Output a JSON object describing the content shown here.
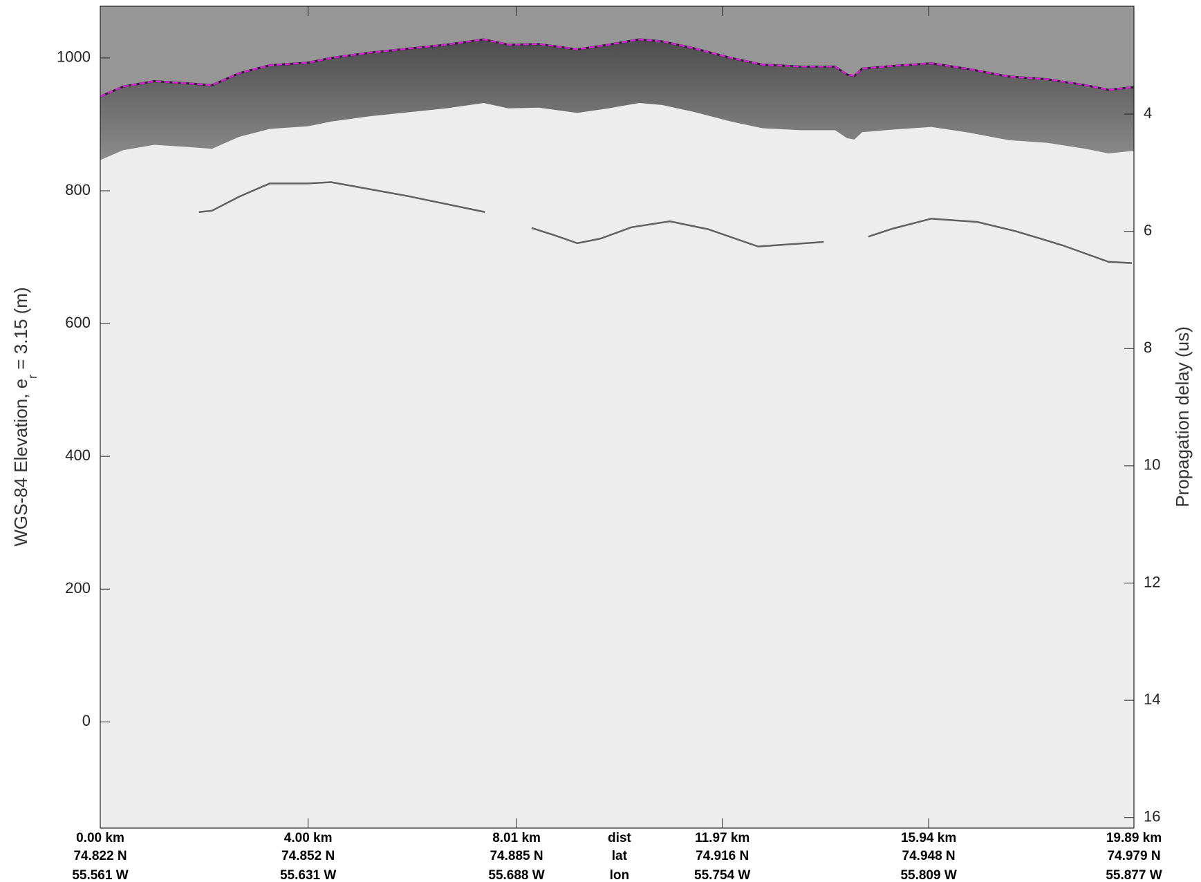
{
  "chart_data": {
    "type": "radargram",
    "xlim": [
      0,
      19.89
    ],
    "ylim": [
      -160,
      1078
    ],
    "yticks": [
      0,
      200,
      400,
      600,
      800,
      1000
    ],
    "y2lim": [
      2.16,
      16.18
    ],
    "y2ticks": [
      4,
      6,
      8,
      10,
      12,
      14,
      16
    ],
    "y2reverse": true,
    "ylabel": "WGS-84 Elevation, e",
    "ylabel_sub": "r",
    "ylabel_rest": " = 3.15 (m)",
    "y2label": "Propagation delay (us)",
    "xticks": [
      {
        "value": 0,
        "label": "0.00 km"
      },
      {
        "value": 4,
        "label": "4.00 km"
      },
      {
        "value": 8.01,
        "label": "8.01 km"
      },
      {
        "value": 11.97,
        "label": "11.97 km"
      },
      {
        "value": 15.94,
        "label": "15.94 km"
      },
      {
        "value": 19.89,
        "label": "19.89 km"
      }
    ],
    "lat_labels": [
      "74.822 N",
      "74.852 N",
      "74.885 N",
      "74.916 N",
      "74.948 N",
      "74.979 N"
    ],
    "lon_labels": [
      "55.561 W",
      "55.631 W",
      "55.688 W",
      "55.754 W",
      "55.809 W",
      "55.877 W"
    ],
    "row_labels": [
      "dist",
      "lat",
      "lon"
    ],
    "series": [
      {
        "color": "#e020e0",
        "style": "dashed",
        "x": [
          0,
          0.44,
          1.04,
          1.63,
          2.15,
          2.67,
          3.26,
          4.0,
          4.44,
          5.18,
          5.92,
          6.66,
          7.38,
          7.85,
          8.44,
          9.18,
          9.78,
          10.37,
          10.81,
          11.4,
          12.14,
          12.74,
          13.48,
          14.14,
          14.37,
          14.51,
          14.66,
          15.25,
          15.99,
          16.74,
          17.48,
          18.22,
          18.96,
          19.4,
          19.89
        ],
        "values": [
          942,
          957,
          965,
          962,
          959,
          977,
          989,
          993,
          1000,
          1008,
          1014,
          1020,
          1028,
          1020,
          1021,
          1013,
          1020,
          1028,
          1025,
          1015,
          1000,
          990,
          987,
          987,
          975,
          973,
          984,
          988,
          992,
          983,
          972,
          968,
          959,
          952,
          956
        ]
      },
      {
        "color": "#606060",
        "style": "solid",
        "x": [
          1.9,
          2.15,
          2.67,
          3.26,
          4.0,
          4.44,
          5.92,
          7.4,
          7.6,
          8.3,
          8.74,
          9.18,
          9.63,
          10.22,
          10.96,
          11.7,
          12.66,
          13.92,
          14.3,
          14.78,
          15.25,
          15.99,
          16.88,
          17.62,
          18.51,
          19.4,
          19.85
        ],
        "values": [
          768,
          770,
          791,
          811,
          811,
          813,
          792,
          768,
          null,
          744,
          733,
          721,
          728,
          745,
          754,
          742,
          716,
          723,
          null,
          731,
          743,
          758,
          753,
          739,
          718,
          693,
          691
        ]
      }
    ]
  }
}
